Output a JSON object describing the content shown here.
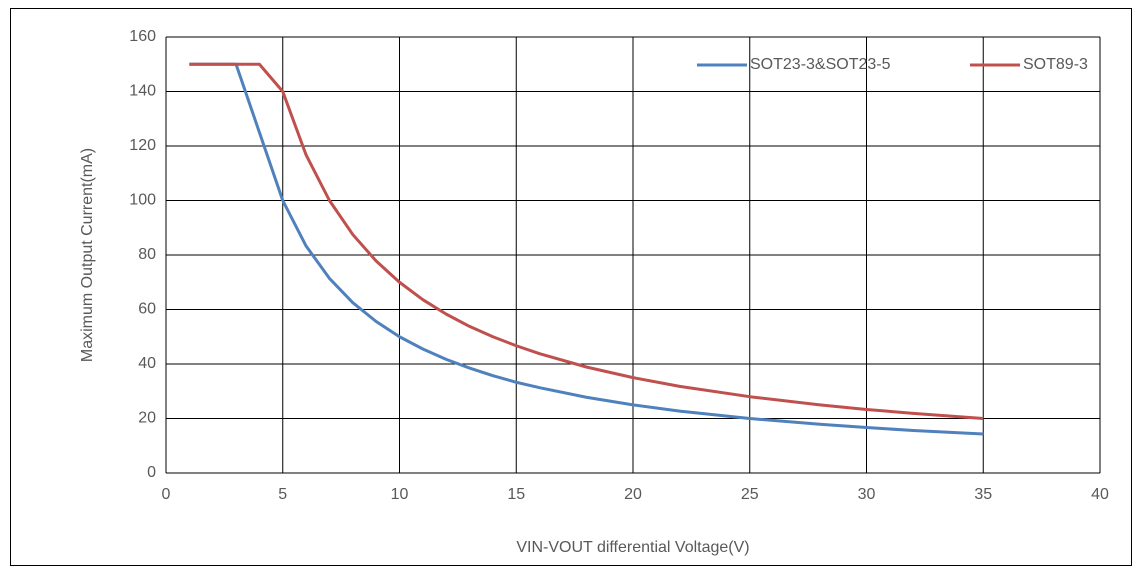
{
  "chart_data": {
    "type": "line",
    "xlabel": "VIN-VOUT differential Voltage(V)",
    "ylabel": "Maximum Output Current(mA)",
    "xlim": [
      0,
      40
    ],
    "xticks": [
      0,
      5,
      10,
      15,
      20,
      25,
      30,
      35,
      40
    ],
    "ylim": [
      0,
      160
    ],
    "yticks": [
      0,
      20,
      40,
      60,
      80,
      100,
      120,
      140,
      160
    ],
    "grid": true,
    "legend": "top-right",
    "x": [
      1,
      3,
      4,
      5,
      6,
      7,
      8,
      9,
      10,
      11,
      12,
      13,
      14,
      15,
      16,
      18,
      20,
      22,
      25,
      28,
      30,
      32,
      35
    ],
    "series": [
      {
        "name": "SOT23-3&SOT23-5",
        "color": "#4f81bd",
        "values": [
          150,
          150,
          125,
          100,
          83.3,
          71.4,
          62.5,
          55.6,
          50,
          45.5,
          41.7,
          38.5,
          35.7,
          33.3,
          31.3,
          27.8,
          25,
          22.7,
          20,
          17.9,
          16.7,
          15.6,
          14.3
        ]
      },
      {
        "name": "SOT89-3",
        "color": "#c0504d",
        "values": [
          150,
          150,
          150,
          140,
          116.7,
          100,
          87.5,
          77.8,
          70,
          63.6,
          58.3,
          53.8,
          50,
          46.7,
          43.8,
          38.9,
          35,
          31.8,
          28,
          25,
          23.3,
          21.9,
          20
        ]
      }
    ]
  }
}
